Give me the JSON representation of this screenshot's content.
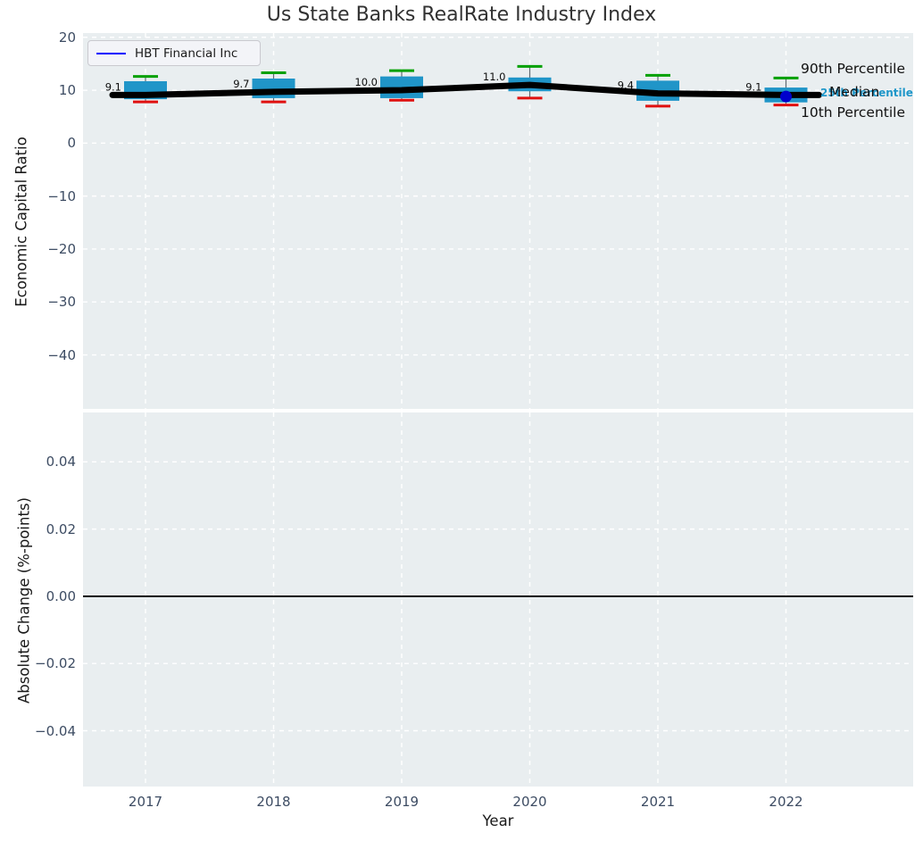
{
  "title": "Us State Banks RealRate Industry Index",
  "legend": {
    "label": "HBT Financial Inc",
    "line_color": "#0000ff"
  },
  "annotations": {
    "p90_label": "90th Percentile",
    "median_label": "Median",
    "p25_label": "25th Percentile",
    "p10_label": "10th Percentile"
  },
  "colors": {
    "plot_bg": "#e9eef0",
    "grid": "#ffffff",
    "box_fill": "#2095c8",
    "whisker": "#5f6a72",
    "p90_cap": "#00a000",
    "p10_cap": "#e01010",
    "median_line": "#000000",
    "hbt_line": "#0000ff",
    "hbt_marker": "#0000cc",
    "tick_label": "#3d4c63",
    "zero_line": "#000000",
    "annotation_blue": "#1f97c9"
  },
  "chart_data": {
    "type": "boxplot",
    "title": "Us State Banks RealRate Industry Index",
    "xlabel": "Year",
    "categories": [
      "2017",
      "2018",
      "2019",
      "2020",
      "2021",
      "2022"
    ],
    "grid": "white dashed, on",
    "legend_position": "upper left",
    "subplots": [
      {
        "ylabel": "Economic Capital Ratio",
        "ylim": [
          -50.2,
          20.8
        ],
        "ytick_values": [
          20,
          10,
          0,
          -10,
          -20,
          -30,
          -40
        ],
        "ytick_labels": [
          "20",
          "10",
          "0",
          "−10",
          "−20",
          "−30",
          "−40"
        ],
        "boxes": [
          {
            "year": "2017",
            "p10": 7.8,
            "q1": 8.3,
            "median": 9.1,
            "q3": 11.7,
            "p90": 12.6,
            "label": "9.1"
          },
          {
            "year": "2018",
            "p10": 7.8,
            "q1": 8.5,
            "median": 9.7,
            "q3": 12.2,
            "p90": 13.3,
            "label": "9.7"
          },
          {
            "year": "2019",
            "p10": 8.1,
            "q1": 8.5,
            "median": 10.0,
            "q3": 12.6,
            "p90": 13.7,
            "label": "10.0"
          },
          {
            "year": "2020",
            "p10": 8.5,
            "q1": 9.8,
            "median": 11.0,
            "q3": 12.4,
            "p90": 14.5,
            "label": "11.0"
          },
          {
            "year": "2021",
            "p10": 7.0,
            "q1": 8.0,
            "median": 9.4,
            "q3": 11.8,
            "p90": 12.8,
            "label": "9.4"
          },
          {
            "year": "2022",
            "p10": 7.2,
            "q1": 7.7,
            "median": 9.1,
            "q3": 10.5,
            "p90": 12.3,
            "label": "9.1"
          }
        ],
        "median_series": [
          9.1,
          9.7,
          10.0,
          11.0,
          9.4,
          9.1
        ],
        "hbt_point": {
          "year": "2022",
          "value": 8.8
        }
      },
      {
        "ylabel": "Absolute Change (%-points)",
        "ylim": [
          -0.0566,
          0.0547
        ],
        "ytick_values": [
          0.04,
          0.02,
          0.0,
          -0.02,
          -0.04
        ],
        "ytick_labels": [
          "0.04",
          "0.02",
          "0.00",
          "−0.02",
          "−0.04"
        ],
        "zero_line": 0.0,
        "series": []
      }
    ]
  }
}
